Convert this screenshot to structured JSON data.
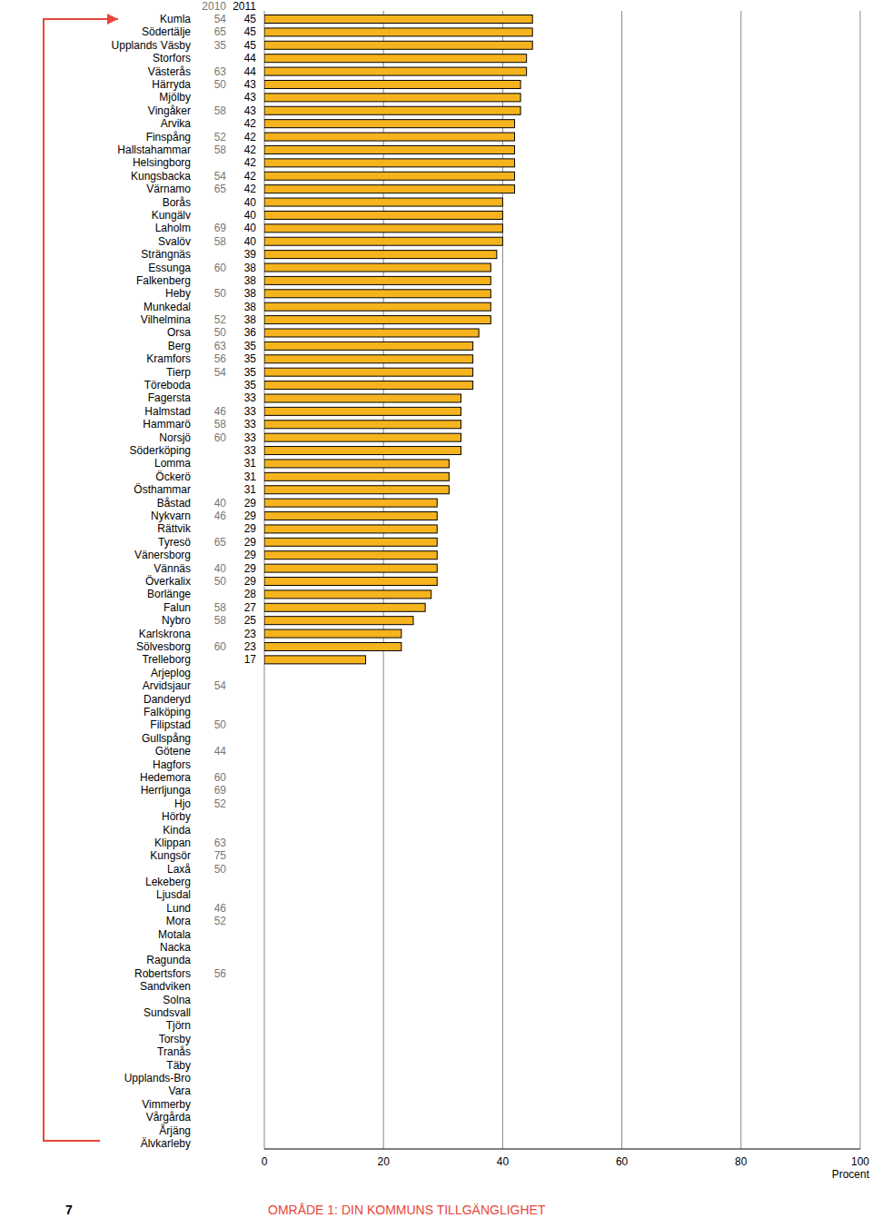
{
  "chart_data": {
    "type": "bar",
    "orientation": "horizontal",
    "categories": [
      "Kumla",
      "Södertälje",
      "Upplands Väsby",
      "Storfors",
      "Västerås",
      "Härryda",
      "Mjölby",
      "Vingåker",
      "Arvika",
      "Finspång",
      "Hallstahammar",
      "Helsingborg",
      "Kungsbacka",
      "Värnamo",
      "Borås",
      "Kungälv",
      "Laholm",
      "Svalöv",
      "Strängnäs",
      "Essunga",
      "Falkenberg",
      "Heby",
      "Munkedal",
      "Vilhelmina",
      "Orsa",
      "Berg",
      "Kramfors",
      "Tierp",
      "Töreboda",
      "Fagersta",
      "Halmstad",
      "Hammarö",
      "Norsjö",
      "Söderköping",
      "Lomma",
      "Öckerö",
      "Östhammar",
      "Båstad",
      "Nykvarn",
      "Rättvik",
      "Tyresö",
      "Vänersborg",
      "Vännäs",
      "Överkalix",
      "Borlänge",
      "Falun",
      "Nybro",
      "Karlskrona",
      "Sölvesborg",
      "Trelleborg",
      "Arjeplog",
      "Arvidsjaur",
      "Danderyd",
      "Falköping",
      "Filipstad",
      "Gullspång",
      "Götene",
      "Hagfors",
      "Hedemora",
      "Herrljunga",
      "Hjo",
      "Hörby",
      "Kinda",
      "Klippan",
      "Kungsör",
      "Laxå",
      "Lekeberg",
      "Ljusdal",
      "Lund",
      "Mora",
      "Motala",
      "Nacka",
      "Ragunda",
      "Robertsfors",
      "Sandviken",
      "Solna",
      "Sundsvall",
      "Tjörn",
      "Torsby",
      "Tranås",
      "Täby",
      "Upplands-Bro",
      "Vara",
      "Vimmerby",
      "Vårgårda",
      "Årjäng",
      "Älvkarleby"
    ],
    "series": [
      {
        "name": "2010",
        "type": "text",
        "values": [
          54,
          65,
          35,
          null,
          63,
          50,
          null,
          58,
          null,
          52,
          58,
          null,
          54,
          65,
          null,
          null,
          69,
          58,
          null,
          60,
          null,
          50,
          null,
          52,
          50,
          63,
          56,
          54,
          null,
          null,
          46,
          58,
          60,
          null,
          null,
          null,
          null,
          40,
          46,
          null,
          65,
          null,
          40,
          50,
          null,
          58,
          58,
          null,
          60,
          null,
          null,
          54,
          null,
          null,
          50,
          null,
          44,
          null,
          60,
          69,
          52,
          null,
          null,
          63,
          75,
          50,
          null,
          null,
          46,
          52,
          null,
          null,
          null,
          56,
          null,
          null,
          null,
          null,
          null,
          null,
          null,
          null,
          null,
          null,
          null,
          null,
          null
        ]
      },
      {
        "name": "2011",
        "type": "bar",
        "color": "#f5b41e",
        "values": [
          45,
          45,
          45,
          44,
          44,
          43,
          43,
          43,
          42,
          42,
          42,
          42,
          42,
          42,
          40,
          40,
          40,
          40,
          39,
          38,
          38,
          38,
          38,
          38,
          36,
          35,
          35,
          35,
          35,
          33,
          33,
          33,
          33,
          33,
          31,
          31,
          31,
          29,
          29,
          29,
          29,
          29,
          29,
          29,
          28,
          27,
          25,
          23,
          23,
          17,
          null,
          null,
          null,
          null,
          null,
          null,
          null,
          null,
          null,
          null,
          null,
          null,
          null,
          null,
          null,
          null,
          null,
          null,
          null,
          null,
          null,
          null,
          null,
          null,
          null,
          null,
          null,
          null,
          null,
          null,
          null,
          null,
          null,
          null,
          null,
          null,
          null
        ]
      }
    ],
    "data_labels": true,
    "x_label": "Procent",
    "xlim": [
      0,
      100
    ],
    "xticks": [
      0,
      20,
      40,
      60,
      80,
      100
    ],
    "grid": true
  },
  "footer": {
    "page_number": "7",
    "section": "OMRÅDE 1: DIN KOMMUNS TILLGÄNGLIGHET"
  }
}
